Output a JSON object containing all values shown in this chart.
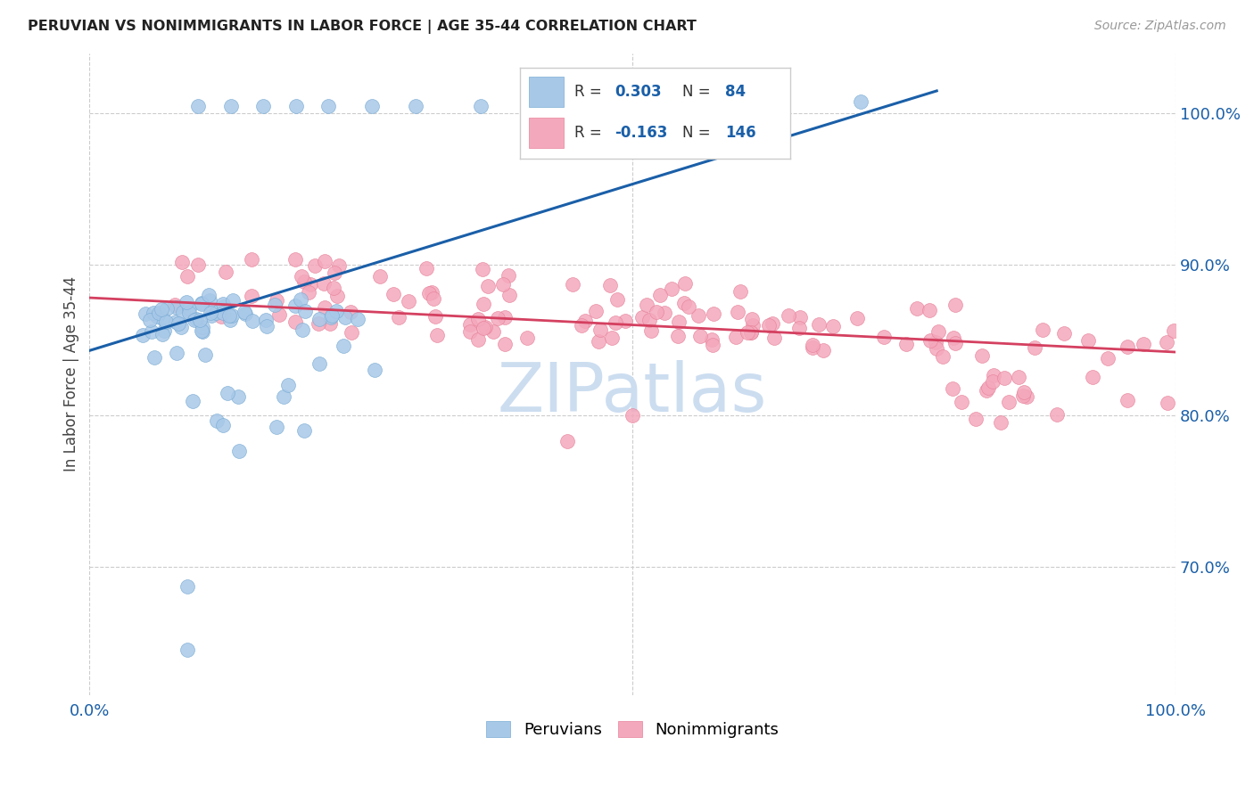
{
  "title": "PERUVIAN VS NONIMMIGRANTS IN LABOR FORCE | AGE 35-44 CORRELATION CHART",
  "source": "Source: ZipAtlas.com",
  "ylabel": "In Labor Force | Age 35-44",
  "xlim": [
    0.0,
    1.0
  ],
  "ylim": [
    0.615,
    1.04
  ],
  "y_tick_positions": [
    0.7,
    0.8,
    0.9,
    1.0
  ],
  "y_tick_labels": [
    "70.0%",
    "80.0%",
    "90.0%",
    "100.0%"
  ],
  "legend_label1": "Peruvians",
  "legend_label2": "Nonimmigrants",
  "R1": 0.303,
  "N1": 84,
  "R2": -0.163,
  "N2": 146,
  "blue_color": "#a8c8e8",
  "blue_edge": "#7badd4",
  "pink_color": "#f4a8bc",
  "pink_edge": "#e8829a",
  "line_blue": "#1a5fa8",
  "line_pink": "#d44060",
  "text_blue": "#1a5fa8",
  "legend_text_dark": "#333333",
  "background": "#ffffff",
  "grid_color": "#cccccc",
  "watermark_color": "#ccddf0",
  "blue_line_x0": 0.0,
  "blue_line_y0": 0.843,
  "blue_line_x1": 0.78,
  "blue_line_y1": 1.015,
  "pink_line_x0": 0.0,
  "pink_line_y0": 0.878,
  "pink_line_x1": 1.0,
  "pink_line_y1": 0.842
}
